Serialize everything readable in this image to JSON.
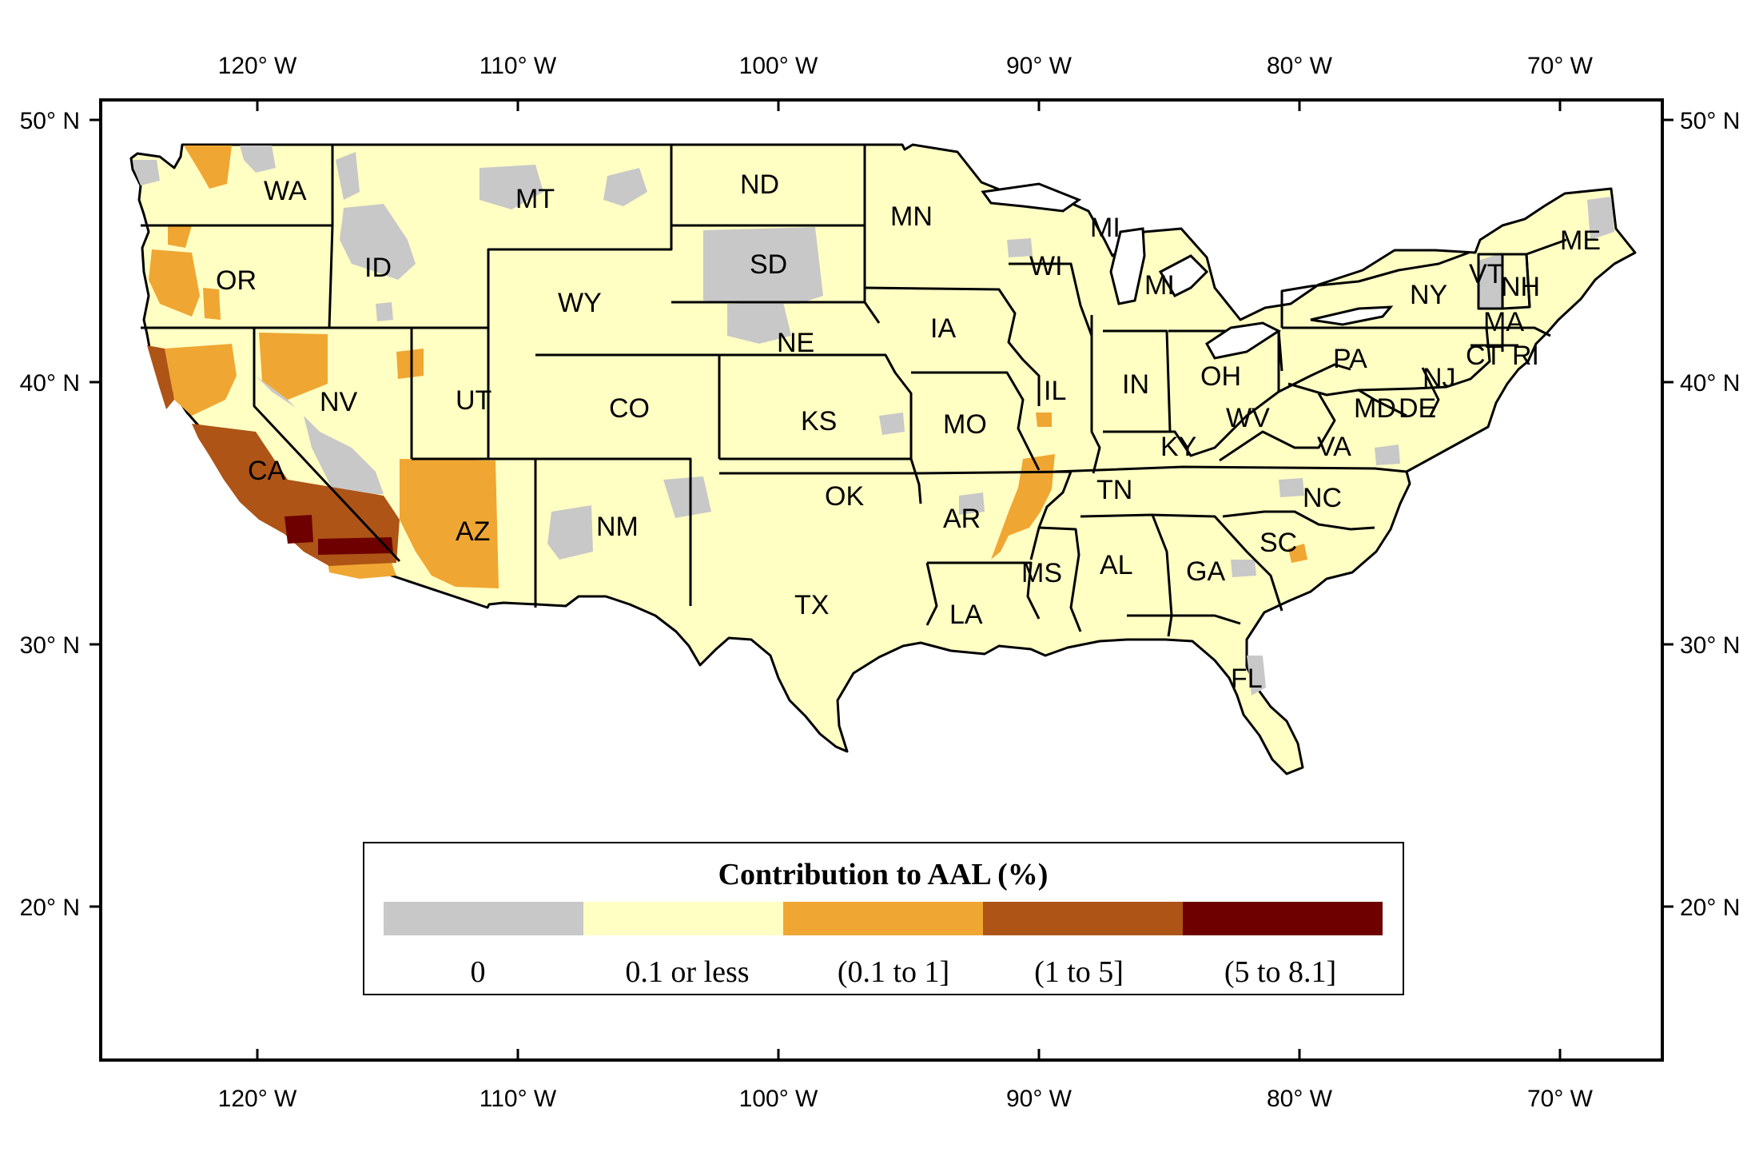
{
  "map": {
    "lon_ticks": [
      "120° W",
      "110° W",
      "100° W",
      "90° W",
      "80° W",
      "70° W"
    ],
    "lat_ticks": [
      "50° N",
      "40° N",
      "30° N",
      "20° N"
    ],
    "states": [
      "WA",
      "OR",
      "CA",
      "ID",
      "NV",
      "MT",
      "WY",
      "UT",
      "AZ",
      "CO",
      "NM",
      "ND",
      "SD",
      "NE",
      "KS",
      "OK",
      "TX",
      "MN",
      "IA",
      "MO",
      "AR",
      "LA",
      "WI",
      "IL",
      "MI",
      "MI",
      "IN",
      "OH",
      "KY",
      "TN",
      "MS",
      "AL",
      "GA",
      "FL",
      "SC",
      "NC",
      "VA",
      "WV",
      "PA",
      "NY",
      "VT",
      "NH",
      "ME",
      "MA",
      "CT",
      "RI",
      "NJ",
      "MD",
      "DE"
    ]
  },
  "legend": {
    "title": "Contribution to AAL (%)",
    "classes": [
      {
        "label": "0",
        "color": "#c8c8c8"
      },
      {
        "label": "0.1 or less",
        "color": "#ffffc4"
      },
      {
        "label": "(0.1 to 1]",
        "color": "#f0a632"
      },
      {
        "label": "(1 to 5]",
        "color": "#ad5416"
      },
      {
        "label": "(5 to 8.1]",
        "color": "#6e0000"
      }
    ]
  }
}
